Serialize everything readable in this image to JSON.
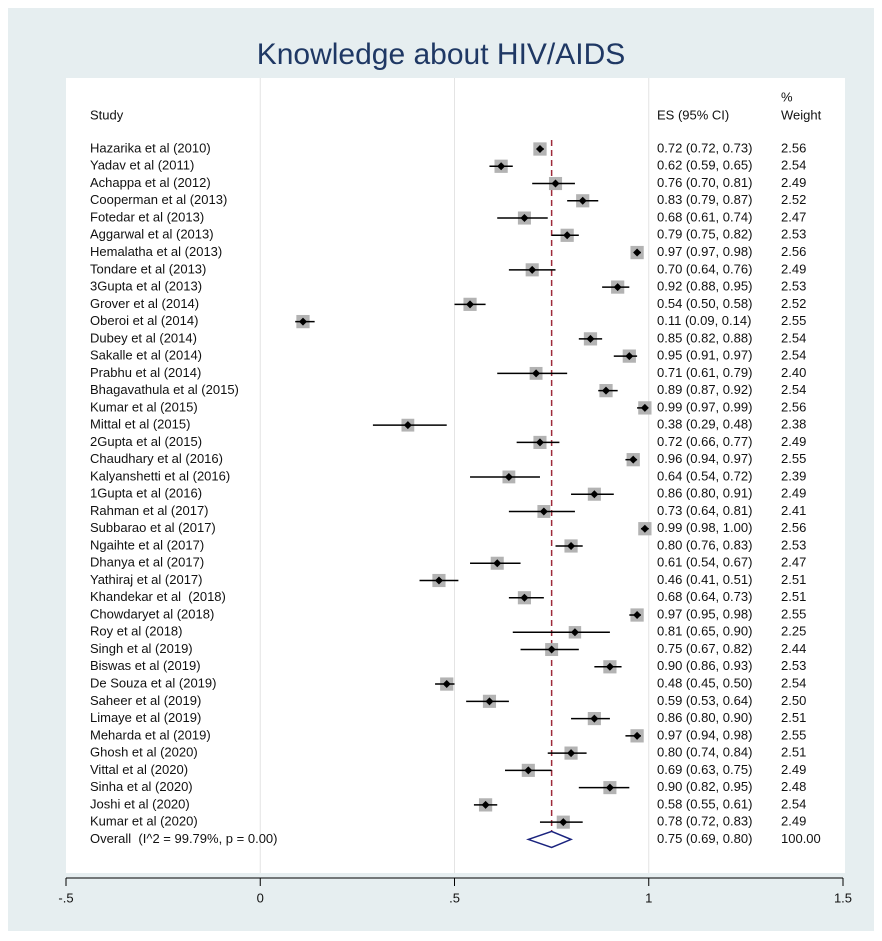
{
  "chart_data": {
    "type": "forest",
    "title": "Knowledge about HIV/AIDS",
    "headers": {
      "study": "Study",
      "es": "ES (95% CI)",
      "weight_top": "%",
      "weight": "Weight"
    },
    "xlim": [
      -0.5,
      1.5
    ],
    "xticks": [
      {
        "value": -0.5,
        "label": "-.5"
      },
      0,
      {
        "value": 0.5,
        "label": ".5"
      },
      1,
      {
        "value": 1.5,
        "label": "1.5"
      }
    ],
    "grid": true,
    "box_color": "#b3b3b3",
    "line_color": "#000000",
    "ref_color": "#9e2a3a",
    "overall_color": "#1a237e",
    "studies": [
      {
        "name": "Hazarika et al (2010)",
        "es": 0.72,
        "ci": [
          0.72,
          0.73
        ],
        "es_label": "0.72 (0.72, 0.73)",
        "weight": 2.56,
        "weight_label": "2.56"
      },
      {
        "name": "Yadav et al (2011)",
        "es": 0.62,
        "ci": [
          0.59,
          0.65
        ],
        "es_label": "0.62 (0.59, 0.65)",
        "weight": 2.54,
        "weight_label": "2.54"
      },
      {
        "name": "Achappa et al (2012)",
        "es": 0.76,
        "ci": [
          0.7,
          0.81
        ],
        "es_label": "0.76 (0.70, 0.81)",
        "weight": 2.49,
        "weight_label": "2.49"
      },
      {
        "name": "Cooperman et al (2013)",
        "es": 0.83,
        "ci": [
          0.79,
          0.87
        ],
        "es_label": "0.83 (0.79, 0.87)",
        "weight": 2.52,
        "weight_label": "2.52"
      },
      {
        "name": "Fotedar et al (2013)",
        "es": 0.68,
        "ci": [
          0.61,
          0.74
        ],
        "es_label": "0.68 (0.61, 0.74)",
        "weight": 2.47,
        "weight_label": "2.47"
      },
      {
        "name": "Aggarwal et al (2013)",
        "es": 0.79,
        "ci": [
          0.75,
          0.82
        ],
        "es_label": "0.79 (0.75, 0.82)",
        "weight": 2.53,
        "weight_label": "2.53"
      },
      {
        "name": "Hemalatha et al (2013)",
        "es": 0.97,
        "ci": [
          0.97,
          0.98
        ],
        "es_label": "0.97 (0.97, 0.98)",
        "weight": 2.56,
        "weight_label": "2.56"
      },
      {
        "name": "Tondare et al (2013)",
        "es": 0.7,
        "ci": [
          0.64,
          0.76
        ],
        "es_label": "0.70 (0.64, 0.76)",
        "weight": 2.49,
        "weight_label": "2.49"
      },
      {
        "name": "3Gupta et al (2013)",
        "es": 0.92,
        "ci": [
          0.88,
          0.95
        ],
        "es_label": "0.92 (0.88, 0.95)",
        "weight": 2.53,
        "weight_label": "2.53"
      },
      {
        "name": "Grover et al (2014)",
        "es": 0.54,
        "ci": [
          0.5,
          0.58
        ],
        "es_label": "0.54 (0.50, 0.58)",
        "weight": 2.52,
        "weight_label": "2.52"
      },
      {
        "name": "Oberoi et al (2014)",
        "es": 0.11,
        "ci": [
          0.09,
          0.14
        ],
        "es_label": "0.11 (0.09, 0.14)",
        "weight": 2.55,
        "weight_label": "2.55"
      },
      {
        "name": "Dubey et al (2014)",
        "es": 0.85,
        "ci": [
          0.82,
          0.88
        ],
        "es_label": "0.85 (0.82, 0.88)",
        "weight": 2.54,
        "weight_label": "2.54"
      },
      {
        "name": "Sakalle et al (2014)",
        "es": 0.95,
        "ci": [
          0.91,
          0.97
        ],
        "es_label": "0.95 (0.91, 0.97)",
        "weight": 2.54,
        "weight_label": "2.54"
      },
      {
        "name": "Prabhu et al (2014)",
        "es": 0.71,
        "ci": [
          0.61,
          0.79
        ],
        "es_label": "0.71 (0.61, 0.79)",
        "weight": 2.4,
        "weight_label": "2.40"
      },
      {
        "name": "Bhagavathula et al (2015)",
        "es": 0.89,
        "ci": [
          0.87,
          0.92
        ],
        "es_label": "0.89 (0.87, 0.92)",
        "weight": 2.54,
        "weight_label": "2.54"
      },
      {
        "name": "Kumar et al (2015)",
        "es": 0.99,
        "ci": [
          0.97,
          0.99
        ],
        "es_label": "0.99 (0.97, 0.99)",
        "weight": 2.56,
        "weight_label": "2.56"
      },
      {
        "name": "Mittal et al (2015)",
        "es": 0.38,
        "ci": [
          0.29,
          0.48
        ],
        "es_label": "0.38 (0.29, 0.48)",
        "weight": 2.38,
        "weight_label": "2.38"
      },
      {
        "name": "2Gupta et al (2015)",
        "es": 0.72,
        "ci": [
          0.66,
          0.77
        ],
        "es_label": "0.72 (0.66, 0.77)",
        "weight": 2.49,
        "weight_label": "2.49"
      },
      {
        "name": "Chaudhary et al (2016)",
        "es": 0.96,
        "ci": [
          0.94,
          0.97
        ],
        "es_label": "0.96 (0.94, 0.97)",
        "weight": 2.55,
        "weight_label": "2.55"
      },
      {
        "name": "Kalyanshetti et al (2016)",
        "es": 0.64,
        "ci": [
          0.54,
          0.72
        ],
        "es_label": "0.64 (0.54, 0.72)",
        "weight": 2.39,
        "weight_label": "2.39"
      },
      {
        "name": "1Gupta et al (2016)",
        "es": 0.86,
        "ci": [
          0.8,
          0.91
        ],
        "es_label": "0.86 (0.80, 0.91)",
        "weight": 2.49,
        "weight_label": "2.49"
      },
      {
        "name": "Rahman et al (2017)",
        "es": 0.73,
        "ci": [
          0.64,
          0.81
        ],
        "es_label": "0.73 (0.64, 0.81)",
        "weight": 2.41,
        "weight_label": "2.41"
      },
      {
        "name": "Subbarao et al (2017)",
        "es": 0.99,
        "ci": [
          0.98,
          1.0
        ],
        "es_label": "0.99 (0.98, 1.00)",
        "weight": 2.56,
        "weight_label": "2.56"
      },
      {
        "name": "Ngaihte et al (2017)",
        "es": 0.8,
        "ci": [
          0.76,
          0.83
        ],
        "es_label": "0.80 (0.76, 0.83)",
        "weight": 2.53,
        "weight_label": "2.53"
      },
      {
        "name": "Dhanya et al (2017)",
        "es": 0.61,
        "ci": [
          0.54,
          0.67
        ],
        "es_label": "0.61 (0.54, 0.67)",
        "weight": 2.47,
        "weight_label": "2.47"
      },
      {
        "name": "Yathiraj et al (2017)",
        "es": 0.46,
        "ci": [
          0.41,
          0.51
        ],
        "es_label": "0.46 (0.41, 0.51)",
        "weight": 2.51,
        "weight_label": "2.51"
      },
      {
        "name": "Khandekar et al  (2018)",
        "es": 0.68,
        "ci": [
          0.64,
          0.73
        ],
        "es_label": "0.68 (0.64, 0.73)",
        "weight": 2.51,
        "weight_label": "2.51"
      },
      {
        "name": "Chowdaryet al (2018)",
        "es": 0.97,
        "ci": [
          0.95,
          0.98
        ],
        "es_label": "0.97 (0.95, 0.98)",
        "weight": 2.55,
        "weight_label": "2.55"
      },
      {
        "name": "Roy et al (2018)",
        "es": 0.81,
        "ci": [
          0.65,
          0.9
        ],
        "es_label": "0.81 (0.65, 0.90)",
        "weight": 2.25,
        "weight_label": "2.25"
      },
      {
        "name": "Singh et al (2019)",
        "es": 0.75,
        "ci": [
          0.67,
          0.82
        ],
        "es_label": "0.75 (0.67, 0.82)",
        "weight": 2.44,
        "weight_label": "2.44"
      },
      {
        "name": "Biswas et al (2019)",
        "es": 0.9,
        "ci": [
          0.86,
          0.93
        ],
        "es_label": "0.90 (0.86, 0.93)",
        "weight": 2.53,
        "weight_label": "2.53"
      },
      {
        "name": "De Souza et al (2019)",
        "es": 0.48,
        "ci": [
          0.45,
          0.5
        ],
        "es_label": "0.48 (0.45, 0.50)",
        "weight": 2.54,
        "weight_label": "2.54"
      },
      {
        "name": "Saheer et al (2019)",
        "es": 0.59,
        "ci": [
          0.53,
          0.64
        ],
        "es_label": "0.59 (0.53, 0.64)",
        "weight": 2.5,
        "weight_label": "2.50"
      },
      {
        "name": "Limaye et al (2019)",
        "es": 0.86,
        "ci": [
          0.8,
          0.9
        ],
        "es_label": "0.86 (0.80, 0.90)",
        "weight": 2.51,
        "weight_label": "2.51"
      },
      {
        "name": "Meharda et al (2019)",
        "es": 0.97,
        "ci": [
          0.94,
          0.98
        ],
        "es_label": "0.97 (0.94, 0.98)",
        "weight": 2.55,
        "weight_label": "2.55"
      },
      {
        "name": "Ghosh et al (2020)",
        "es": 0.8,
        "ci": [
          0.74,
          0.84
        ],
        "es_label": "0.80 (0.74, 0.84)",
        "weight": 2.51,
        "weight_label": "2.51"
      },
      {
        "name": "Vittal et al (2020)",
        "es": 0.69,
        "ci": [
          0.63,
          0.75
        ],
        "es_label": "0.69 (0.63, 0.75)",
        "weight": 2.49,
        "weight_label": "2.49"
      },
      {
        "name": "Sinha et al (2020)",
        "es": 0.9,
        "ci": [
          0.82,
          0.95
        ],
        "es_label": "0.90 (0.82, 0.95)",
        "weight": 2.48,
        "weight_label": "2.48"
      },
      {
        "name": "Joshi et al (2020)",
        "es": 0.58,
        "ci": [
          0.55,
          0.61
        ],
        "es_label": "0.58 (0.55, 0.61)",
        "weight": 2.54,
        "weight_label": "2.54"
      },
      {
        "name": "Kumar et al (2020)",
        "es": 0.78,
        "ci": [
          0.72,
          0.83
        ],
        "es_label": "0.78 (0.72, 0.83)",
        "weight": 2.49,
        "weight_label": "2.49"
      }
    ],
    "overall": {
      "name": "Overall  (I^2 = 99.79%, p = 0.00)",
      "es": 0.75,
      "ci": [
        0.69,
        0.8
      ],
      "es_label": "0.75 (0.69, 0.80)",
      "weight": 100,
      "weight_label": "100.00"
    }
  }
}
